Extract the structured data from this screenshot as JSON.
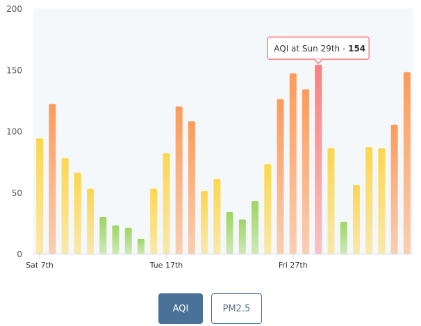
{
  "chart_data": {
    "type": "bar",
    "title": "",
    "xlabel": "",
    "ylabel": "",
    "ylim": [
      0,
      200
    ],
    "yticks": [
      "0",
      "50",
      "100",
      "150",
      "200"
    ],
    "xtick_labels": [
      {
        "index": 0,
        "label": "Sat 7th"
      },
      {
        "index": 10,
        "label": "Tue 17th"
      },
      {
        "index": 20,
        "label": "Fri 27th"
      }
    ],
    "values": [
      94,
      122,
      78,
      66,
      53,
      30,
      23,
      21,
      12,
      53,
      82,
      120,
      108,
      51,
      61,
      34,
      28,
      43,
      73,
      126,
      147,
      134,
      154,
      86,
      26,
      56,
      87,
      86,
      105,
      148
    ],
    "colors": {
      "good": "#9ed563",
      "moderate": "#fdd64d",
      "unhealthy": "#fd9b5a",
      "very_unhealthy": "#fd7f7f"
    },
    "tooltip": {
      "index": 22,
      "prefix": "AQI at Sun 29th - ",
      "value": "154"
    }
  },
  "buttons": {
    "aqi": "AQI",
    "pm25": "PM2.5"
  }
}
